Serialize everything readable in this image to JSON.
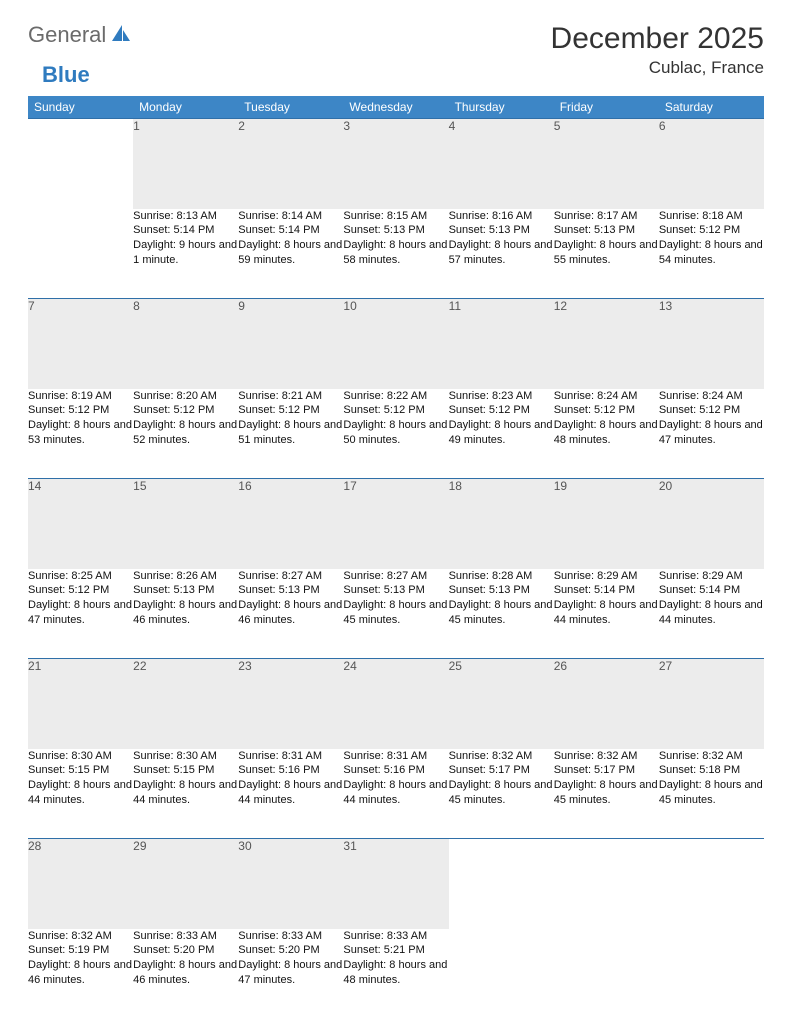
{
  "colors": {
    "header_bg": "#3d86c6",
    "header_text": "#ffffff",
    "daynum_bg": "#ececec",
    "row_border": "#2f6fa8",
    "logo_gray": "#6b6b6b",
    "logo_blue": "#2f7bbf",
    "body_text": "#111111"
  },
  "logo": {
    "general": "General",
    "blue": "Blue"
  },
  "title": "December 2025",
  "location": "Cublac, France",
  "weekdays": [
    "Sunday",
    "Monday",
    "Tuesday",
    "Wednesday",
    "Thursday",
    "Friday",
    "Saturday"
  ],
  "weeks": [
    [
      null,
      {
        "n": "1",
        "sr": "Sunrise: 8:13 AM",
        "ss": "Sunset: 5:14 PM",
        "dl": "Daylight: 9 hours and 1 minute."
      },
      {
        "n": "2",
        "sr": "Sunrise: 8:14 AM",
        "ss": "Sunset: 5:14 PM",
        "dl": "Daylight: 8 hours and 59 minutes."
      },
      {
        "n": "3",
        "sr": "Sunrise: 8:15 AM",
        "ss": "Sunset: 5:13 PM",
        "dl": "Daylight: 8 hours and 58 minutes."
      },
      {
        "n": "4",
        "sr": "Sunrise: 8:16 AM",
        "ss": "Sunset: 5:13 PM",
        "dl": "Daylight: 8 hours and 57 minutes."
      },
      {
        "n": "5",
        "sr": "Sunrise: 8:17 AM",
        "ss": "Sunset: 5:13 PM",
        "dl": "Daylight: 8 hours and 55 minutes."
      },
      {
        "n": "6",
        "sr": "Sunrise: 8:18 AM",
        "ss": "Sunset: 5:12 PM",
        "dl": "Daylight: 8 hours and 54 minutes."
      }
    ],
    [
      {
        "n": "7",
        "sr": "Sunrise: 8:19 AM",
        "ss": "Sunset: 5:12 PM",
        "dl": "Daylight: 8 hours and 53 minutes."
      },
      {
        "n": "8",
        "sr": "Sunrise: 8:20 AM",
        "ss": "Sunset: 5:12 PM",
        "dl": "Daylight: 8 hours and 52 minutes."
      },
      {
        "n": "9",
        "sr": "Sunrise: 8:21 AM",
        "ss": "Sunset: 5:12 PM",
        "dl": "Daylight: 8 hours and 51 minutes."
      },
      {
        "n": "10",
        "sr": "Sunrise: 8:22 AM",
        "ss": "Sunset: 5:12 PM",
        "dl": "Daylight: 8 hours and 50 minutes."
      },
      {
        "n": "11",
        "sr": "Sunrise: 8:23 AM",
        "ss": "Sunset: 5:12 PM",
        "dl": "Daylight: 8 hours and 49 minutes."
      },
      {
        "n": "12",
        "sr": "Sunrise: 8:24 AM",
        "ss": "Sunset: 5:12 PM",
        "dl": "Daylight: 8 hours and 48 minutes."
      },
      {
        "n": "13",
        "sr": "Sunrise: 8:24 AM",
        "ss": "Sunset: 5:12 PM",
        "dl": "Daylight: 8 hours and 47 minutes."
      }
    ],
    [
      {
        "n": "14",
        "sr": "Sunrise: 8:25 AM",
        "ss": "Sunset: 5:12 PM",
        "dl": "Daylight: 8 hours and 47 minutes."
      },
      {
        "n": "15",
        "sr": "Sunrise: 8:26 AM",
        "ss": "Sunset: 5:13 PM",
        "dl": "Daylight: 8 hours and 46 minutes."
      },
      {
        "n": "16",
        "sr": "Sunrise: 8:27 AM",
        "ss": "Sunset: 5:13 PM",
        "dl": "Daylight: 8 hours and 46 minutes."
      },
      {
        "n": "17",
        "sr": "Sunrise: 8:27 AM",
        "ss": "Sunset: 5:13 PM",
        "dl": "Daylight: 8 hours and 45 minutes."
      },
      {
        "n": "18",
        "sr": "Sunrise: 8:28 AM",
        "ss": "Sunset: 5:13 PM",
        "dl": "Daylight: 8 hours and 45 minutes."
      },
      {
        "n": "19",
        "sr": "Sunrise: 8:29 AM",
        "ss": "Sunset: 5:14 PM",
        "dl": "Daylight: 8 hours and 44 minutes."
      },
      {
        "n": "20",
        "sr": "Sunrise: 8:29 AM",
        "ss": "Sunset: 5:14 PM",
        "dl": "Daylight: 8 hours and 44 minutes."
      }
    ],
    [
      {
        "n": "21",
        "sr": "Sunrise: 8:30 AM",
        "ss": "Sunset: 5:15 PM",
        "dl": "Daylight: 8 hours and 44 minutes."
      },
      {
        "n": "22",
        "sr": "Sunrise: 8:30 AM",
        "ss": "Sunset: 5:15 PM",
        "dl": "Daylight: 8 hours and 44 minutes."
      },
      {
        "n": "23",
        "sr": "Sunrise: 8:31 AM",
        "ss": "Sunset: 5:16 PM",
        "dl": "Daylight: 8 hours and 44 minutes."
      },
      {
        "n": "24",
        "sr": "Sunrise: 8:31 AM",
        "ss": "Sunset: 5:16 PM",
        "dl": "Daylight: 8 hours and 44 minutes."
      },
      {
        "n": "25",
        "sr": "Sunrise: 8:32 AM",
        "ss": "Sunset: 5:17 PM",
        "dl": "Daylight: 8 hours and 45 minutes."
      },
      {
        "n": "26",
        "sr": "Sunrise: 8:32 AM",
        "ss": "Sunset: 5:17 PM",
        "dl": "Daylight: 8 hours and 45 minutes."
      },
      {
        "n": "27",
        "sr": "Sunrise: 8:32 AM",
        "ss": "Sunset: 5:18 PM",
        "dl": "Daylight: 8 hours and 45 minutes."
      }
    ],
    [
      {
        "n": "28",
        "sr": "Sunrise: 8:32 AM",
        "ss": "Sunset: 5:19 PM",
        "dl": "Daylight: 8 hours and 46 minutes."
      },
      {
        "n": "29",
        "sr": "Sunrise: 8:33 AM",
        "ss": "Sunset: 5:20 PM",
        "dl": "Daylight: 8 hours and 46 minutes."
      },
      {
        "n": "30",
        "sr": "Sunrise: 8:33 AM",
        "ss": "Sunset: 5:20 PM",
        "dl": "Daylight: 8 hours and 47 minutes."
      },
      {
        "n": "31",
        "sr": "Sunrise: 8:33 AM",
        "ss": "Sunset: 5:21 PM",
        "dl": "Daylight: 8 hours and 48 minutes."
      },
      null,
      null,
      null
    ]
  ]
}
